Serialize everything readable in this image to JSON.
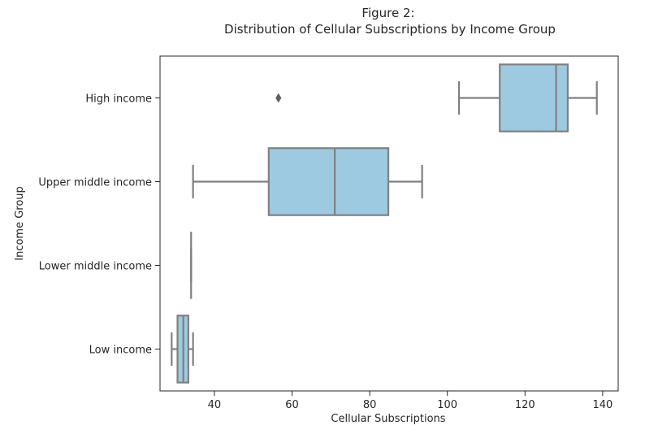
{
  "chart_data": {
    "type": "boxplot",
    "orientation": "horizontal",
    "title": "Figure 2:",
    "subtitle": "Distribution of Cellular Subscriptions by Income Group",
    "xlabel": "Cellular Subscriptions",
    "ylabel": "Income Group",
    "xlim": [
      26,
      144
    ],
    "xticks": [
      40,
      60,
      80,
      100,
      120,
      140
    ],
    "grid": false,
    "box_color": "#9ecae1",
    "line_color": "#808080",
    "categories": [
      "High income",
      "Upper middle income",
      "Lower middle income",
      "Low income"
    ],
    "boxes": [
      {
        "category": "High income",
        "whisker_low": 103,
        "q1": 113.5,
        "median": 128,
        "q3": 131,
        "whisker_high": 138.5,
        "outliers": [
          56.5
        ]
      },
      {
        "category": "Upper middle income",
        "whisker_low": 34.5,
        "q1": 54,
        "median": 71,
        "q3": 84.8,
        "whisker_high": 93.5,
        "outliers": []
      },
      {
        "category": "Lower middle income",
        "whisker_low": 34,
        "q1": 34,
        "median": 34,
        "q3": 34,
        "whisker_high": 34,
        "outliers": []
      },
      {
        "category": "Low income",
        "whisker_low": 29,
        "q1": 30.5,
        "median": 32,
        "q3": 33.3,
        "whisker_high": 34.5,
        "outliers": []
      }
    ]
  }
}
